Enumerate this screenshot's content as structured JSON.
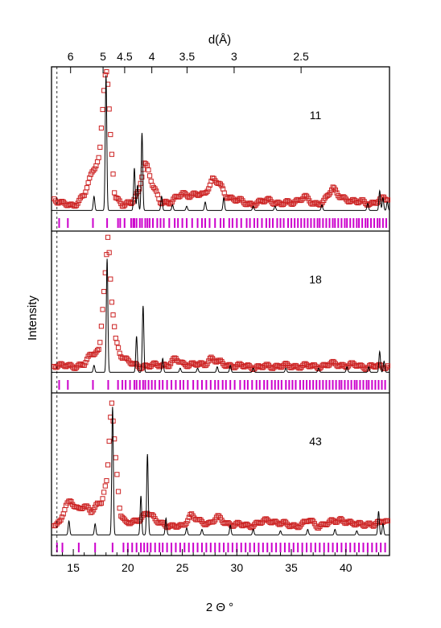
{
  "chart_data": {
    "type": "scatter",
    "xlabel": "2 Θ °",
    "ylabel": "Intensity",
    "top_axis_label": "d(Å)",
    "x_range": [
      13.0,
      44.0
    ],
    "x_ticks": [
      15,
      20,
      25,
      30,
      35,
      40
    ],
    "top_ticks": [
      {
        "label": "6",
        "d": 6.0,
        "two_theta": 14.75
      },
      {
        "label": "5",
        "d": 5.0,
        "two_theta": 17.73
      },
      {
        "label": "4.5",
        "d": 4.5,
        "two_theta": 19.71
      },
      {
        "label": "4",
        "d": 4.0,
        "two_theta": 22.2
      },
      {
        "label": "3.5",
        "d": 3.5,
        "two_theta": 25.43
      },
      {
        "label": "3",
        "d": 3.0,
        "two_theta": 29.75
      },
      {
        "label": "2.5",
        "d": 2.5,
        "two_theta": 35.89
      }
    ],
    "dashed_line_x": 13.5,
    "colors": {
      "observed": "#cc2222",
      "calculated": "#000000",
      "reflections": "#cc00cc",
      "frame": "#000000"
    },
    "series_styles": {
      "observed": "open squares (red)",
      "calculated": "solid line (black)",
      "reflections": "vertical tick marks (magenta)"
    },
    "panels": [
      {
        "label": "11",
        "observed_background": [
          [
            13.2,
            0.1
          ],
          [
            14.0,
            0.06
          ],
          [
            15.0,
            0.05
          ],
          [
            16.0,
            0.12
          ],
          [
            16.8,
            0.3
          ],
          [
            17.4,
            0.4
          ],
          [
            17.9,
            0.98
          ],
          [
            18.1,
            1.0
          ],
          [
            18.4,
            0.55
          ],
          [
            18.8,
            0.12
          ],
          [
            19.5,
            0.06
          ],
          [
            20.3,
            0.06
          ],
          [
            21.0,
            0.15
          ],
          [
            21.5,
            0.36
          ],
          [
            21.8,
            0.32
          ],
          [
            22.3,
            0.18
          ],
          [
            23.0,
            0.08
          ],
          [
            24.0,
            0.07
          ],
          [
            25.0,
            0.14
          ],
          [
            25.8,
            0.12
          ],
          [
            27.0,
            0.13
          ],
          [
            27.8,
            0.24
          ],
          [
            28.4,
            0.2
          ],
          [
            29.0,
            0.12
          ],
          [
            30.0,
            0.09
          ],
          [
            31.0,
            0.06
          ],
          [
            32.0,
            0.07
          ],
          [
            33.0,
            0.09
          ],
          [
            34.0,
            0.06
          ],
          [
            35.0,
            0.07
          ],
          [
            36.2,
            0.11
          ],
          [
            37.0,
            0.06
          ],
          [
            38.0,
            0.08
          ],
          [
            38.8,
            0.17
          ],
          [
            39.5,
            0.12
          ],
          [
            40.5,
            0.07
          ],
          [
            41.5,
            0.09
          ],
          [
            42.3,
            0.05
          ],
          [
            43.0,
            0.08
          ],
          [
            43.5,
            0.12
          ],
          [
            44.0,
            0.09
          ]
        ],
        "calculated_peaks": [
          [
            16.9,
            0.1
          ],
          [
            18.0,
            0.96
          ],
          [
            20.6,
            0.3
          ],
          [
            20.9,
            0.18
          ],
          [
            21.3,
            0.55
          ],
          [
            23.1,
            0.1
          ],
          [
            24.1,
            0.04
          ],
          [
            25.4,
            0.03
          ],
          [
            27.1,
            0.06
          ],
          [
            28.8,
            0.09
          ],
          [
            31.5,
            0.03
          ],
          [
            33.5,
            0.03
          ],
          [
            37.8,
            0.04
          ],
          [
            42.0,
            0.05
          ],
          [
            43.1,
            0.14
          ],
          [
            43.4,
            0.09
          ],
          [
            43.8,
            0.06
          ]
        ],
        "reflection_ticks": [
          13.7,
          14.5,
          16.8,
          18.1,
          19.1,
          19.3,
          19.7,
          20.3,
          20.5,
          20.6,
          20.8,
          21.1,
          21.3,
          21.6,
          21.8,
          22.0,
          22.3,
          22.7,
          23.0,
          23.3,
          23.8,
          24.3,
          24.6,
          25.0,
          25.4,
          25.9,
          26.4,
          26.8,
          27.1,
          27.5,
          28.0,
          28.5,
          28.8,
          29.3,
          29.6,
          30.0,
          30.4,
          30.9,
          31.2,
          31.6,
          31.9,
          32.3,
          32.7,
          33.0,
          33.3,
          33.7,
          34.0,
          34.3,
          34.7,
          35.0,
          35.3,
          35.6,
          35.9,
          36.2,
          36.5,
          36.8,
          37.1,
          37.4,
          37.6,
          37.9,
          38.2,
          38.5,
          38.8,
          39.0,
          39.3,
          39.6,
          39.9,
          40.1,
          40.4,
          40.7,
          41.0,
          41.2,
          41.5,
          41.8,
          42.0,
          42.3,
          42.6,
          42.9,
          43.1,
          43.4,
          43.7
        ]
      },
      {
        "label": "18",
        "observed_background": [
          [
            13.2,
            0.07
          ],
          [
            14.0,
            0.06
          ],
          [
            15.0,
            0.06
          ],
          [
            16.0,
            0.07
          ],
          [
            16.7,
            0.15
          ],
          [
            17.4,
            0.18
          ],
          [
            17.9,
            0.7
          ],
          [
            18.2,
            1.0
          ],
          [
            18.5,
            0.55
          ],
          [
            18.9,
            0.25
          ],
          [
            19.3,
            0.15
          ],
          [
            19.9,
            0.1
          ],
          [
            20.5,
            0.07
          ],
          [
            21.0,
            0.06
          ],
          [
            22.0,
            0.06
          ],
          [
            23.0,
            0.07
          ],
          [
            23.8,
            0.07
          ],
          [
            24.4,
            0.11
          ],
          [
            25.0,
            0.08
          ],
          [
            26.0,
            0.07
          ],
          [
            27.0,
            0.07
          ],
          [
            27.6,
            0.12
          ],
          [
            28.2,
            0.09
          ],
          [
            29.0,
            0.07
          ],
          [
            30.0,
            0.06
          ],
          [
            31.0,
            0.06
          ],
          [
            32.0,
            0.05
          ],
          [
            33.0,
            0.06
          ],
          [
            34.0,
            0.06
          ],
          [
            35.0,
            0.06
          ],
          [
            36.0,
            0.06
          ],
          [
            37.0,
            0.06
          ],
          [
            38.0,
            0.06
          ],
          [
            39.0,
            0.08
          ],
          [
            40.0,
            0.06
          ],
          [
            41.0,
            0.07
          ],
          [
            42.0,
            0.05
          ],
          [
            43.0,
            0.06
          ],
          [
            44.0,
            0.06
          ]
        ],
        "calculated_peaks": [
          [
            16.9,
            0.05
          ],
          [
            18.1,
            0.82
          ],
          [
            20.8,
            0.26
          ],
          [
            21.4,
            0.48
          ],
          [
            23.2,
            0.1
          ],
          [
            24.8,
            0.03
          ],
          [
            26.4,
            0.03
          ],
          [
            28.2,
            0.04
          ],
          [
            29.4,
            0.05
          ],
          [
            31.5,
            0.03
          ],
          [
            34.5,
            0.03
          ],
          [
            37.5,
            0.03
          ],
          [
            40.1,
            0.04
          ],
          [
            42.1,
            0.04
          ],
          [
            43.1,
            0.15
          ],
          [
            43.5,
            0.08
          ]
        ],
        "reflection_ticks": [
          13.7,
          14.5,
          16.8,
          18.2,
          19.1,
          19.5,
          19.8,
          20.2,
          20.6,
          20.8,
          21.1,
          21.4,
          21.6,
          21.9,
          22.2,
          22.5,
          22.9,
          23.2,
          23.6,
          24.0,
          24.4,
          24.8,
          25.1,
          25.5,
          26.0,
          26.4,
          26.8,
          27.2,
          27.6,
          28.0,
          28.3,
          28.7,
          29.0,
          29.4,
          29.8,
          30.3,
          30.7,
          31.0,
          31.4,
          31.8,
          32.1,
          32.5,
          32.8,
          33.2,
          33.5,
          33.8,
          34.1,
          34.5,
          34.8,
          35.1,
          35.4,
          35.8,
          36.1,
          36.4,
          36.7,
          37.0,
          37.3,
          37.6,
          37.9,
          38.2,
          38.5,
          38.8,
          39.1,
          39.4,
          39.6,
          39.9,
          40.2,
          40.5,
          40.8,
          41.0,
          41.3,
          41.6,
          41.9,
          42.1,
          42.4,
          42.7,
          43.0,
          43.3,
          43.6
        ]
      },
      {
        "label": "43",
        "observed_background": [
          [
            13.2,
            0.1
          ],
          [
            13.8,
            0.1
          ],
          [
            14.3,
            0.22
          ],
          [
            14.8,
            0.26
          ],
          [
            15.5,
            0.2
          ],
          [
            16.0,
            0.22
          ],
          [
            16.6,
            0.18
          ],
          [
            17.2,
            0.24
          ],
          [
            17.6,
            0.26
          ],
          [
            18.1,
            0.4
          ],
          [
            18.5,
            1.0
          ],
          [
            18.9,
            0.55
          ],
          [
            19.3,
            0.18
          ],
          [
            19.8,
            0.1
          ],
          [
            20.5,
            0.1
          ],
          [
            21.2,
            0.14
          ],
          [
            21.8,
            0.18
          ],
          [
            22.5,
            0.12
          ],
          [
            23.2,
            0.1
          ],
          [
            24.0,
            0.07
          ],
          [
            25.0,
            0.08
          ],
          [
            25.8,
            0.16
          ],
          [
            26.5,
            0.11
          ],
          [
            27.5,
            0.1
          ],
          [
            28.2,
            0.14
          ],
          [
            29.0,
            0.1
          ],
          [
            30.0,
            0.09
          ],
          [
            31.0,
            0.08
          ],
          [
            32.0,
            0.1
          ],
          [
            33.0,
            0.12
          ],
          [
            34.0,
            0.1
          ],
          [
            35.0,
            0.08
          ],
          [
            36.0,
            0.09
          ],
          [
            36.6,
            0.12
          ],
          [
            37.5,
            0.08
          ],
          [
            38.5,
            0.1
          ],
          [
            39.5,
            0.13
          ],
          [
            40.5,
            0.09
          ],
          [
            41.5,
            0.1
          ],
          [
            42.5,
            0.08
          ],
          [
            43.0,
            0.1
          ],
          [
            43.5,
            0.13
          ],
          [
            44.0,
            0.1
          ]
        ],
        "calculated_peaks": [
          [
            14.6,
            0.1
          ],
          [
            17.0,
            0.08
          ],
          [
            18.6,
            0.92
          ],
          [
            21.2,
            0.28
          ],
          [
            21.8,
            0.58
          ],
          [
            23.5,
            0.12
          ],
          [
            25.4,
            0.05
          ],
          [
            26.8,
            0.04
          ],
          [
            29.4,
            0.07
          ],
          [
            31.5,
            0.04
          ],
          [
            34.0,
            0.03
          ],
          [
            36.5,
            0.04
          ],
          [
            39.0,
            0.04
          ],
          [
            41.0,
            0.03
          ],
          [
            43.0,
            0.17
          ],
          [
            43.4,
            0.08
          ]
        ],
        "reflection_ticks": [
          13.5,
          14.0,
          15.5,
          17.0,
          18.6,
          19.6,
          20.0,
          20.4,
          20.8,
          21.2,
          21.5,
          21.8,
          22.1,
          22.5,
          22.9,
          23.2,
          23.6,
          24.0,
          24.4,
          24.8,
          25.2,
          25.6,
          26.0,
          26.4,
          26.8,
          27.2,
          27.6,
          28.0,
          28.4,
          28.8,
          29.2,
          29.6,
          30.0,
          30.4,
          30.8,
          31.2,
          31.6,
          32.0,
          32.4,
          32.8,
          33.2,
          33.6,
          34.0,
          34.4,
          34.8,
          35.2,
          35.6,
          36.0,
          36.4,
          36.8,
          37.2,
          37.6,
          38.0,
          38.4,
          38.8,
          39.2,
          39.6,
          40.0,
          40.4,
          40.8,
          41.2,
          41.6,
          42.0,
          42.4,
          42.8,
          43.2,
          43.6
        ]
      }
    ]
  }
}
